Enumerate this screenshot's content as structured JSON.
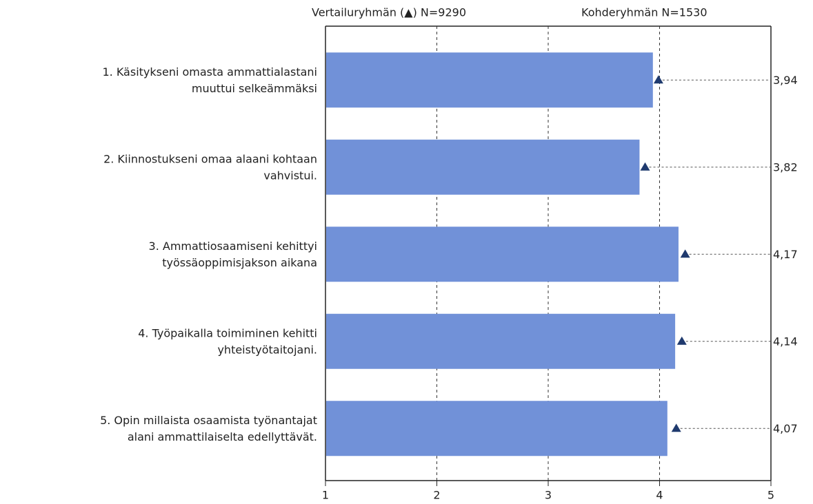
{
  "chart_data": {
    "type": "bar",
    "orientation": "horizontal",
    "categories": [
      [
        "1. Käsitykseni omasta ammattialastani",
        "muuttui selkeämmäksi"
      ],
      [
        "2. Kiinnostukseni omaa alaani kohtaan",
        "vahvistui."
      ],
      [
        "3. Ammattiosaamiseni kehittyi",
        "työssäoppimisjakson aikana"
      ],
      [
        "4. Työpaikalla toimiminen kehitti",
        "yhteistyötaitojani."
      ],
      [
        "5. Opin millaista osaamista työnantajat",
        "alani ammattilaiselta edellyttävät."
      ]
    ],
    "series": [
      {
        "name": "Kohderyhmän N=1530",
        "color": "#7191d8",
        "values": [
          3.94,
          3.82,
          4.17,
          4.14,
          4.07
        ],
        "value_labels": [
          "3,94",
          "3,82",
          "4,17",
          "4,14",
          "4,07"
        ]
      },
      {
        "name": "Vertailuryhmän (▲) N=9290",
        "color": "#1f3a6e",
        "marker": "triangle",
        "values": [
          3.99,
          3.87,
          4.23,
          4.2,
          4.15
        ]
      }
    ],
    "xlim": [
      1,
      5
    ],
    "xticks": [
      1,
      2,
      3,
      4,
      5
    ],
    "grid": true
  }
}
